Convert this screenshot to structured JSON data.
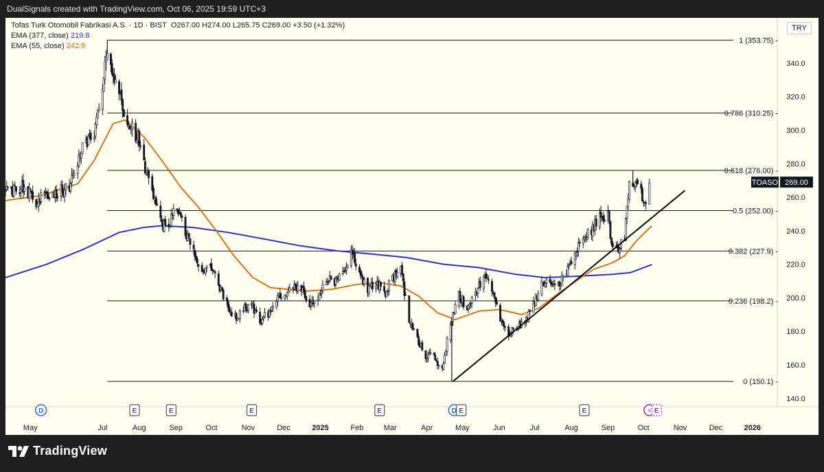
{
  "header": {
    "credit": "DualSignals created with TradingView.com, Oct 06, 2025 19:59 UTC+3"
  },
  "legend": {
    "symbol_line": "Tofas Turk Otomobil Fabrikasi A.S. · 1D · BIST",
    "ohlc": "O267.00  H274.00  L265.75  C269.00  +3.50 (+1.32%)",
    "ema377_label": "EMA (377, close)",
    "ema377_value": "219.8",
    "ema55_label": "EMA (55, close)",
    "ema55_value": "242.9"
  },
  "currency": "TRY",
  "price_tag": {
    "ticker": "TOASO",
    "price": "269.00"
  },
  "footer": {
    "brand": "TradingView"
  },
  "colors": {
    "background": "#fffff0",
    "ema377": "#2a2ee0",
    "ema55": "#e06500",
    "candles": "#131722",
    "fib_lines": "#131722",
    "trendline": "#000000"
  },
  "chart_data": {
    "type": "candlestick",
    "y_axis": {
      "ticks": [
        140,
        160,
        180,
        200,
        220,
        240,
        260,
        280,
        300,
        320,
        340,
        360
      ],
      "ylim": [
        135,
        367
      ]
    },
    "x_axis": {
      "labels": [
        {
          "label": "May",
          "date": "2024-05-01"
        },
        {
          "label": "Jul",
          "date": "2024-07-01"
        },
        {
          "label": "Aug",
          "date": "2024-08-01"
        },
        {
          "label": "Sep",
          "date": "2024-09-01"
        },
        {
          "label": "Oct",
          "date": "2024-10-01"
        },
        {
          "label": "Nov",
          "date": "2024-11-01"
        },
        {
          "label": "Dec",
          "date": "2024-12-01"
        },
        {
          "label": "2025",
          "date": "2025-01-01"
        },
        {
          "label": "Feb",
          "date": "2025-02-01"
        },
        {
          "label": "Mar",
          "date": "2025-03-01"
        },
        {
          "label": "Apr",
          "date": "2025-04-01"
        },
        {
          "label": "May",
          "date": "2025-05-01"
        },
        {
          "label": "Jun",
          "date": "2025-06-01"
        },
        {
          "label": "Jul",
          "date": "2025-07-01"
        },
        {
          "label": "Aug",
          "date": "2025-08-01"
        },
        {
          "label": "Sep",
          "date": "2025-09-01"
        },
        {
          "label": "Oct",
          "date": "2025-10-01"
        },
        {
          "label": "Nov",
          "date": "2025-11-01"
        },
        {
          "label": "Dec",
          "date": "2025-12-01"
        },
        {
          "label": "2026",
          "date": "2026-01-01"
        }
      ],
      "xlim": [
        "2024-04-10",
        "2026-01-22"
      ]
    },
    "fib_levels": [
      {
        "label": "1 (353.75)",
        "value": 353.75
      },
      {
        "label": "0.786 (310.25)",
        "value": 310.25
      },
      {
        "label": "0.618 (276.00)",
        "value": 276.0
      },
      {
        "label": "0.5 (252.00)",
        "value": 252.0
      },
      {
        "label": "0.382 (227.9)",
        "value": 227.9
      },
      {
        "label": "0.236 (198.2)",
        "value": 198.2
      },
      {
        "label": "0 (150.1)",
        "value": 150.1
      }
    ],
    "fib_start_date": "2024-07-05",
    "trendline": {
      "start": {
        "date": "2025-04-23",
        "value": 150.1
      },
      "end": {
        "date": "2025-11-05",
        "value": 264.0
      }
    },
    "close_path": [
      [
        "2024-04-10",
        263
      ],
      [
        "2024-04-25",
        266
      ],
      [
        "2024-05-06",
        258
      ],
      [
        "2024-05-20",
        262
      ],
      [
        "2024-06-03",
        266
      ],
      [
        "2024-06-14",
        292
      ],
      [
        "2024-06-24",
        296
      ],
      [
        "2024-07-01",
        328
      ],
      [
        "2024-07-05",
        346
      ],
      [
        "2024-07-10",
        333
      ],
      [
        "2024-07-17",
        316
      ],
      [
        "2024-07-25",
        302
      ],
      [
        "2024-08-01",
        294
      ],
      [
        "2024-08-05",
        281
      ],
      [
        "2024-08-09",
        270
      ],
      [
        "2024-08-14",
        257
      ],
      [
        "2024-08-20",
        242
      ],
      [
        "2024-08-26",
        244
      ],
      [
        "2024-09-02",
        254
      ],
      [
        "2024-09-09",
        238
      ],
      [
        "2024-09-16",
        226
      ],
      [
        "2024-09-23",
        216
      ],
      [
        "2024-09-30",
        221
      ],
      [
        "2024-10-07",
        208
      ],
      [
        "2024-10-14",
        197
      ],
      [
        "2024-10-21",
        188
      ],
      [
        "2024-10-28",
        194
      ],
      [
        "2024-11-04",
        196
      ],
      [
        "2024-11-11",
        186
      ],
      [
        "2024-11-18",
        191
      ],
      [
        "2024-11-25",
        199
      ],
      [
        "2024-12-02",
        203
      ],
      [
        "2024-12-09",
        207
      ],
      [
        "2024-12-16",
        205
      ],
      [
        "2024-12-23",
        195
      ],
      [
        "2024-12-30",
        201
      ],
      [
        "2025-01-06",
        211
      ],
      [
        "2025-01-13",
        209
      ],
      [
        "2025-01-20",
        213
      ],
      [
        "2025-01-27",
        227
      ],
      [
        "2025-02-03",
        216
      ],
      [
        "2025-02-10",
        204
      ],
      [
        "2025-02-17",
        210
      ],
      [
        "2025-02-24",
        202
      ],
      [
        "2025-03-03",
        213
      ],
      [
        "2025-03-10",
        216
      ],
      [
        "2025-03-17",
        188
      ],
      [
        "2025-03-24",
        175
      ],
      [
        "2025-03-31",
        166
      ],
      [
        "2025-04-07",
        164
      ],
      [
        "2025-04-14",
        157
      ],
      [
        "2025-04-21",
        186
      ],
      [
        "2025-04-28",
        201
      ],
      [
        "2025-05-05",
        195
      ],
      [
        "2025-05-12",
        203
      ],
      [
        "2025-05-19",
        213
      ],
      [
        "2025-05-26",
        204
      ],
      [
        "2025-06-02",
        187
      ],
      [
        "2025-06-09",
        178
      ],
      [
        "2025-06-16",
        183
      ],
      [
        "2025-06-23",
        186
      ],
      [
        "2025-06-30",
        196
      ],
      [
        "2025-07-07",
        208
      ],
      [
        "2025-07-14",
        210
      ],
      [
        "2025-07-21",
        207
      ],
      [
        "2025-07-28",
        214
      ],
      [
        "2025-08-04",
        228
      ],
      [
        "2025-08-11",
        236
      ],
      [
        "2025-08-18",
        240
      ],
      [
        "2025-08-25",
        250
      ],
      [
        "2025-09-01",
        248
      ],
      [
        "2025-09-05",
        230
      ],
      [
        "2025-09-10",
        227
      ],
      [
        "2025-09-15",
        238
      ],
      [
        "2025-09-19",
        266
      ],
      [
        "2025-09-24",
        270
      ],
      [
        "2025-09-29",
        262
      ],
      [
        "2025-10-02",
        256
      ],
      [
        "2025-10-06",
        269
      ]
    ],
    "ema55": [
      [
        "2024-04-10",
        258
      ],
      [
        "2024-05-10",
        261
      ],
      [
        "2024-06-10",
        268
      ],
      [
        "2024-06-24",
        282
      ],
      [
        "2024-07-10",
        304
      ],
      [
        "2024-07-20",
        306
      ],
      [
        "2024-08-05",
        296
      ],
      [
        "2024-08-20",
        282
      ],
      [
        "2024-09-05",
        266
      ],
      [
        "2024-09-20",
        254
      ],
      [
        "2024-10-05",
        240
      ],
      [
        "2024-10-20",
        225
      ],
      [
        "2024-11-05",
        212
      ],
      [
        "2024-11-20",
        206
      ],
      [
        "2024-12-05",
        205
      ],
      [
        "2024-12-20",
        204
      ],
      [
        "2025-01-10",
        205
      ],
      [
        "2025-02-01",
        208
      ],
      [
        "2025-02-20",
        209
      ],
      [
        "2025-03-10",
        207
      ],
      [
        "2025-03-25",
        201
      ],
      [
        "2025-04-10",
        191
      ],
      [
        "2025-04-25",
        187
      ],
      [
        "2025-05-15",
        192
      ],
      [
        "2025-06-01",
        193
      ],
      [
        "2025-06-20",
        190
      ],
      [
        "2025-07-05",
        194
      ],
      [
        "2025-07-20",
        202
      ],
      [
        "2025-08-05",
        210
      ],
      [
        "2025-08-20",
        217
      ],
      [
        "2025-09-05",
        221
      ],
      [
        "2025-09-15",
        225
      ],
      [
        "2025-09-25",
        234
      ],
      [
        "2025-10-08",
        242.9
      ]
    ],
    "ema377": [
      [
        "2024-04-10",
        212
      ],
      [
        "2024-05-15",
        220
      ],
      [
        "2024-06-15",
        229
      ],
      [
        "2024-07-15",
        239
      ],
      [
        "2024-08-05",
        242
      ],
      [
        "2024-08-20",
        243
      ],
      [
        "2024-09-15",
        242
      ],
      [
        "2024-10-15",
        239
      ],
      [
        "2024-11-15",
        235
      ],
      [
        "2024-12-15",
        231
      ],
      [
        "2025-01-15",
        228
      ],
      [
        "2025-02-15",
        226
      ],
      [
        "2025-03-15",
        224
      ],
      [
        "2025-04-15",
        220
      ],
      [
        "2025-05-15",
        218
      ],
      [
        "2025-06-15",
        214
      ],
      [
        "2025-07-10",
        212
      ],
      [
        "2025-08-10",
        213
      ],
      [
        "2025-09-05",
        214
      ],
      [
        "2025-09-20",
        215
      ],
      [
        "2025-10-08",
        219.8
      ]
    ],
    "spikes": [
      {
        "date": "2024-07-05",
        "high": 353.75
      },
      {
        "date": "2025-04-22",
        "low": 150.1
      },
      {
        "date": "2025-09-22",
        "high": 276
      }
    ],
    "events": [
      {
        "date": "2024-05-10",
        "letter": "D",
        "kind": "dividend"
      },
      {
        "date": "2024-07-28",
        "letter": "E",
        "kind": "earnings"
      },
      {
        "date": "2024-08-28",
        "letter": "E",
        "kind": "earnings"
      },
      {
        "date": "2024-11-04",
        "letter": "E",
        "kind": "earnings"
      },
      {
        "date": "2025-02-20",
        "letter": "E",
        "kind": "earnings"
      },
      {
        "date": "2025-04-24",
        "letter": "D",
        "kind": "dividend"
      },
      {
        "date": "2025-04-30",
        "letter": "E",
        "kind": "earnings"
      },
      {
        "date": "2025-08-12",
        "letter": "E",
        "kind": "earnings"
      },
      {
        "date": "2025-10-06",
        "letter": "⚡",
        "kind": "split"
      },
      {
        "date": "2025-10-12",
        "letter": "E",
        "kind": "earnings-upcoming"
      }
    ]
  }
}
